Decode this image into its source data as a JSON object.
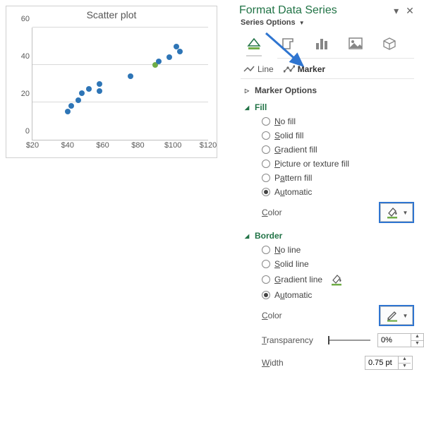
{
  "chart": {
    "title": "Scatter plot",
    "type": "scatter",
    "xlim": [
      20,
      120
    ],
    "ylim": [
      0,
      60
    ],
    "ytick_step": 20,
    "xtick_step": 20,
    "xtick_prefix": "$",
    "yticks": [
      0,
      20,
      40,
      60
    ],
    "xticks": [
      20,
      40,
      60,
      80,
      100,
      120
    ],
    "axis_color": "#bfbfbf",
    "grid_color": "#d9d9d9",
    "tick_font_color": "#595959",
    "tick_fontsize": 11,
    "title_fontsize": 14,
    "title_color": "#555555",
    "marker_radius": 4,
    "points": [
      {
        "x": 40,
        "y": 15,
        "color": "#2e75b6"
      },
      {
        "x": 42,
        "y": 18,
        "color": "#2e75b6"
      },
      {
        "x": 46,
        "y": 21,
        "color": "#2e75b6"
      },
      {
        "x": 48,
        "y": 25,
        "color": "#2e75b6"
      },
      {
        "x": 52,
        "y": 27,
        "color": "#2e75b6"
      },
      {
        "x": 58,
        "y": 30,
        "color": "#2e75b6"
      },
      {
        "x": 58,
        "y": 26,
        "color": "#2e75b6"
      },
      {
        "x": 76,
        "y": 34,
        "color": "#2e75b6"
      },
      {
        "x": 90,
        "y": 40,
        "color": "#70ad47"
      },
      {
        "x": 92,
        "y": 42,
        "color": "#2e75b6"
      },
      {
        "x": 98,
        "y": 44,
        "color": "#2e75b6"
      },
      {
        "x": 102,
        "y": 50,
        "color": "#2e75b6"
      },
      {
        "x": 104,
        "y": 47,
        "color": "#2e75b6"
      }
    ]
  },
  "pane": {
    "title": "Format Data Series",
    "series_options_label": "Series Options",
    "tabs": {
      "line": "Line",
      "marker": "Marker",
      "selected": "marker"
    },
    "marker_options_label": "Marker Options",
    "fill": {
      "label": "Fill",
      "expanded": true,
      "options": [
        {
          "key": "none",
          "pre": "N",
          "rest": "o fill"
        },
        {
          "key": "solid",
          "pre": "S",
          "rest": "olid fill"
        },
        {
          "key": "grad",
          "pre": "G",
          "rest": "radient fill"
        },
        {
          "key": "pic",
          "pre": "P",
          "rest": "icture or texture fill"
        },
        {
          "key": "patt",
          "pre": "P",
          "pre2": "a",
          "rest": "ttern fill"
        },
        {
          "key": "auto",
          "pre": "A",
          "pre2": "u",
          "rest": "tomatic"
        }
      ],
      "selected": "auto",
      "color_label_pre": "C",
      "color_label_rest": "olor",
      "swatch_color": "#70ad47"
    },
    "border": {
      "label": "Border",
      "expanded": true,
      "options": [
        {
          "key": "none",
          "pre": "N",
          "rest": "o line"
        },
        {
          "key": "solid",
          "pre": "S",
          "rest": "olid line"
        },
        {
          "key": "grad",
          "pre": "G",
          "rest": "radient line"
        },
        {
          "key": "auto",
          "pre": "A",
          "pre2": "u",
          "rest": "tomatic"
        }
      ],
      "selected": "auto",
      "gradient_swatch_color": "#70ad47",
      "color_label_pre": "C",
      "color_label_rest": "olor",
      "swatch_color": "#70ad47",
      "transparency_label_pre": "T",
      "transparency_label_rest": "ransparency",
      "transparency_value": "0%",
      "width_label_pre": "W",
      "width_label_rest": "idth",
      "width_value": "0.75 pt"
    },
    "colors": {
      "brand_green": "#217346",
      "highlight_blue": "#2f75d0"
    }
  }
}
